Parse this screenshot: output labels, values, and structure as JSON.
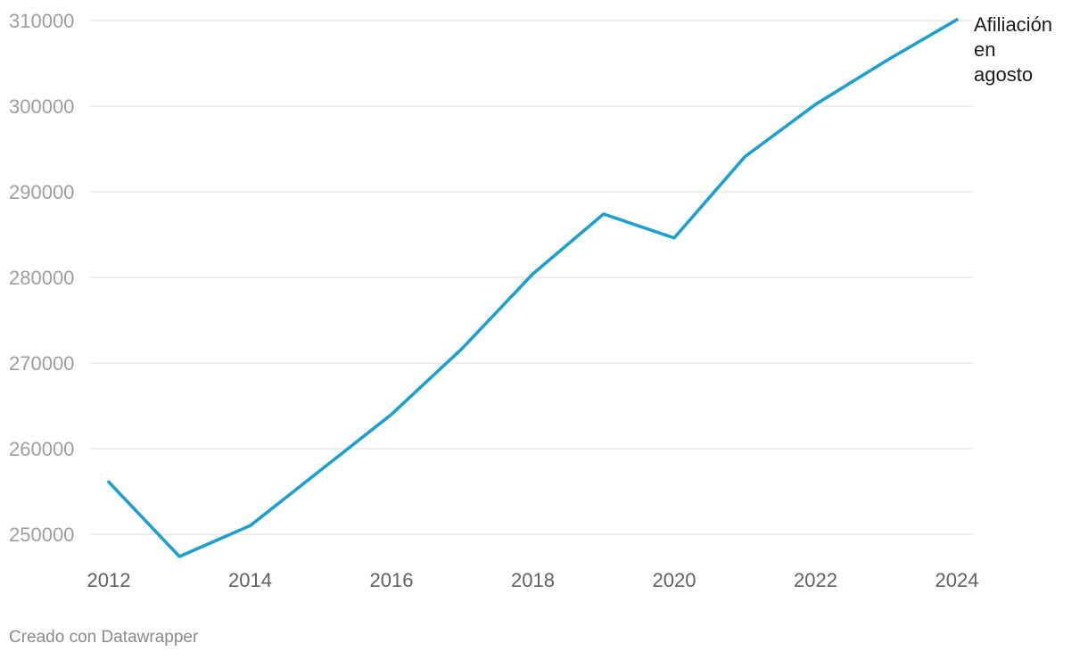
{
  "chart_data": {
    "type": "line",
    "x": [
      2012,
      2013,
      2014,
      2015,
      2016,
      2017,
      2018,
      2019,
      2020,
      2021,
      2022,
      2023,
      2024
    ],
    "series": [
      {
        "name": "Afiliación en agosto",
        "label_lines": [
          "Afiliación",
          "en",
          "agosto"
        ],
        "color": "#1f9fcc",
        "values": [
          256100,
          247400,
          251000,
          257500,
          264000,
          271700,
          280400,
          287400,
          284600,
          294100,
          300200,
          305300,
          310100
        ]
      }
    ],
    "x_ticks": [
      2012,
      2014,
      2016,
      2018,
      2020,
      2022,
      2024
    ],
    "y_ticks": [
      250000,
      260000,
      270000,
      280000,
      290000,
      300000,
      310000
    ],
    "xlim": [
      2012,
      2024
    ],
    "ylim": [
      246000,
      310000
    ],
    "grid": true,
    "gridline_color": "#e3e3e3"
  },
  "footer": {
    "credit": "Creado con Datawrapper"
  }
}
